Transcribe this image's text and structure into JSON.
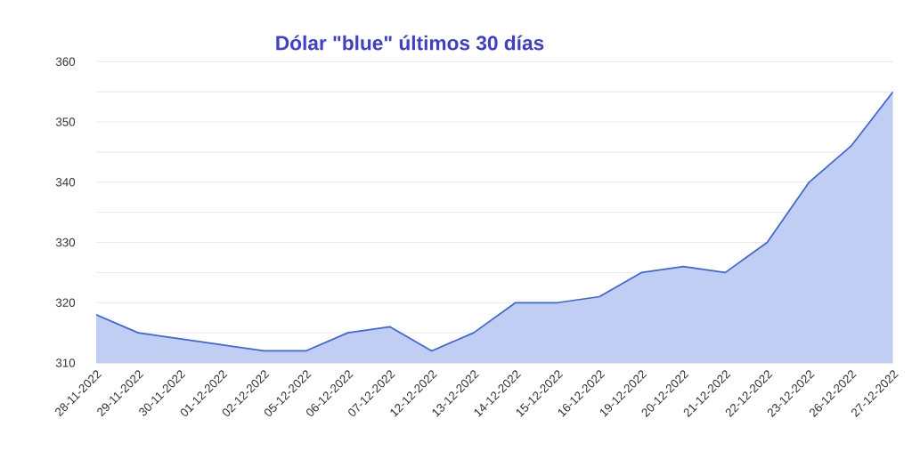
{
  "chart_data": {
    "type": "area",
    "title": "Dólar \"blue\" últimos 30 días",
    "categories": [
      "28-11-2022",
      "29-11-2022",
      "30-11-2022",
      "01-12-2022",
      "02-12-2022",
      "05-12-2022",
      "06-12-2022",
      "07-12-2022",
      "12-12-2022",
      "13-12-2022",
      "14-12-2022",
      "15-12-2022",
      "16-12-2022",
      "19-12-2022",
      "20-12-2022",
      "21-12-2022",
      "22-12-2022",
      "23-12-2022",
      "26-12-2022",
      "27-12-2022"
    ],
    "series": [
      {
        "color": "#3d66d9",
        "values": [
          318,
          315,
          314,
          313,
          312,
          312,
          315,
          316,
          312,
          315,
          320,
          320,
          321,
          325,
          326,
          325,
          330,
          340,
          346,
          355
        ]
      }
    ],
    "ylim": [
      310,
      360
    ],
    "yticks": [
      310,
      {
        "value": 315,
        "label": null
      },
      320,
      {
        "value": 325,
        "label": null
      },
      330,
      {
        "value": 335,
        "label": null
      },
      340,
      {
        "value": 345,
        "label": null
      },
      350,
      {
        "value": 355,
        "label": null
      },
      360
    ],
    "grid": "y"
  }
}
